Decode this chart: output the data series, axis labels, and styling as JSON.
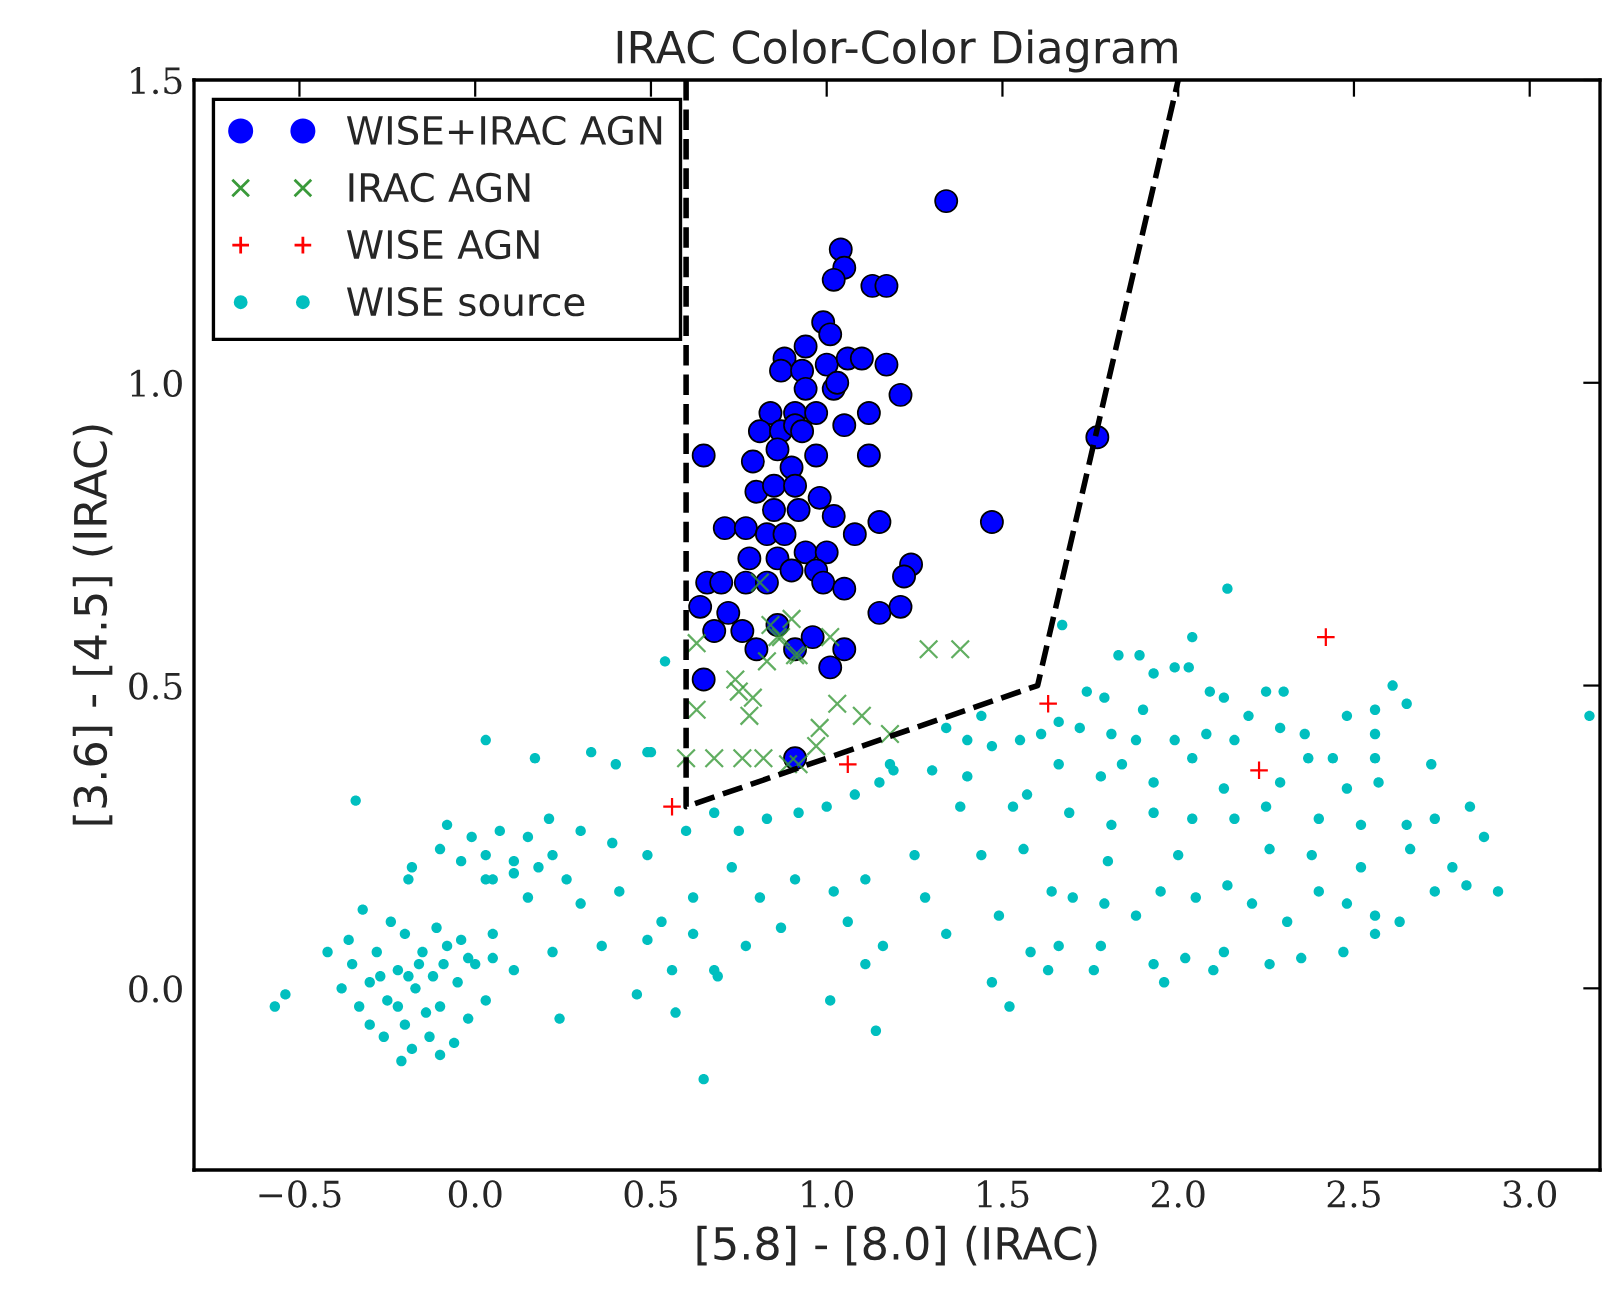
{
  "chart_data": {
    "type": "scatter",
    "title": "IRAC Color-Color Diagram",
    "xlabel": "[5.8] - [8.0] (IRAC)",
    "ylabel": "[3.6] - [4.5] (IRAC)",
    "xlim": [
      -0.8,
      3.2
    ],
    "ylim": [
      -0.3,
      1.5
    ],
    "xticks": [
      {
        "value": -0.5,
        "label": "−0.5"
      },
      {
        "value": 0,
        "label": "0.0"
      },
      0.5,
      {
        "value": 1,
        "label": "1.0"
      },
      1.5,
      {
        "value": 2,
        "label": "2.0"
      },
      2.5,
      {
        "value": 3,
        "label": "3.0"
      }
    ],
    "yticks": [
      {
        "value": 0,
        "label": "0.0"
      },
      0.5,
      {
        "value": 1,
        "label": "1.0"
      },
      1.5
    ],
    "grid": false,
    "legend": "top left",
    "series": [
      {
        "name": "WISE+IRAC AGN",
        "color": "#0000ff",
        "marker": "circle",
        "x": [
          1.34,
          1.04,
          1.05,
          1.02,
          1.13,
          1.17,
          0.99,
          1.01,
          0.94,
          0.88,
          0.87,
          0.93,
          1.0,
          1.06,
          1.1,
          1.17,
          0.94,
          1.02,
          1.03,
          1.21,
          0.84,
          0.91,
          0.97,
          1.05,
          1.12,
          0.81,
          0.87,
          0.91,
          0.93,
          0.65,
          0.79,
          0.86,
          0.97,
          1.12,
          0.9,
          0.8,
          0.85,
          0.91,
          0.85,
          0.92,
          0.98,
          1.02,
          1.08,
          1.15,
          0.71,
          0.77,
          0.83,
          0.88,
          0.94,
          1.0,
          0.78,
          0.86,
          0.9,
          0.97,
          0.66,
          0.7,
          0.77,
          0.83,
          0.99,
          1.05,
          1.24,
          1.22,
          1.47,
          1.77,
          0.64,
          0.72,
          0.86,
          0.76,
          0.68,
          0.8,
          0.91,
          0.96,
          1.01,
          1.05,
          1.15,
          1.21,
          0.65,
          0.91
        ],
        "values": [
          1.3,
          1.22,
          1.19,
          1.17,
          1.16,
          1.16,
          1.1,
          1.08,
          1.06,
          1.04,
          1.02,
          1.02,
          1.03,
          1.04,
          1.04,
          1.03,
          0.99,
          0.99,
          1.0,
          0.98,
          0.95,
          0.95,
          0.95,
          0.93,
          0.95,
          0.92,
          0.92,
          0.93,
          0.92,
          0.88,
          0.87,
          0.89,
          0.88,
          0.88,
          0.86,
          0.82,
          0.83,
          0.83,
          0.79,
          0.79,
          0.81,
          0.78,
          0.75,
          0.77,
          0.76,
          0.76,
          0.75,
          0.75,
          0.72,
          0.72,
          0.71,
          0.71,
          0.69,
          0.69,
          0.67,
          0.67,
          0.67,
          0.67,
          0.67,
          0.66,
          0.7,
          0.68,
          0.77,
          0.91,
          0.63,
          0.62,
          0.6,
          0.59,
          0.59,
          0.56,
          0.56,
          0.58,
          0.53,
          0.56,
          0.62,
          0.63,
          0.51,
          0.38
        ]
      },
      {
        "name": "IRAC AGN",
        "color": "#3a9a3a",
        "marker": "cross",
        "x": [
          0.81,
          0.84,
          0.9,
          0.86,
          0.92,
          1.01,
          0.83,
          0.63,
          1.29,
          1.38,
          0.74,
          0.75,
          0.79,
          0.78,
          0.63,
          1.03,
          1.1,
          0.98,
          1.18,
          0.97,
          0.6,
          0.68,
          0.76,
          0.82,
          0.89,
          0.92,
          0.91,
          0.87
        ],
        "values": [
          0.67,
          0.6,
          0.61,
          0.58,
          0.55,
          0.58,
          0.54,
          0.57,
          0.56,
          0.56,
          0.51,
          0.49,
          0.48,
          0.45,
          0.46,
          0.47,
          0.45,
          0.43,
          0.42,
          0.4,
          0.38,
          0.38,
          0.38,
          0.38,
          0.37,
          0.37,
          0.55,
          0.58
        ]
      },
      {
        "name": "WISE AGN",
        "color": "#ff0000",
        "marker": "plus",
        "x": [
          0.56,
          1.06,
          1.63,
          2.23,
          2.42
        ],
        "values": [
          0.3,
          0.37,
          0.47,
          0.36,
          0.58
        ]
      },
      {
        "name": "WISE source",
        "color": "#00bfbf",
        "marker": "dot",
        "x": [
          -0.17,
          -0.12,
          -0.22,
          -0.25,
          -0.1,
          -0.15,
          -0.2,
          -0.3,
          -0.05,
          -0.08,
          -0.28,
          -0.33,
          -0.13,
          -0.2,
          -0.02,
          -0.35,
          -0.26,
          -0.06,
          0.0,
          -0.11,
          -0.3,
          -0.18,
          0.03,
          -0.24,
          -0.38,
          -0.16,
          -0.14,
          -0.22,
          -0.09,
          -0.19,
          -0.04,
          0.05,
          -0.36,
          -0.1,
          -0.27,
          -0.57,
          -0.54,
          -0.34,
          0.03,
          0.17,
          0.33,
          0.4,
          0.5,
          0.65,
          0.57,
          0.24,
          0.46,
          0.69,
          1.01,
          1.14,
          -0.42,
          -0.21,
          -0.32,
          -0.18,
          -0.19,
          0.21,
          0.3,
          0.39,
          0.49,
          0.6,
          0.68,
          0.75,
          0.83,
          0.92,
          1.0,
          1.08,
          1.15,
          1.18,
          0.15,
          0.3,
          0.41,
          0.53,
          0.62,
          0.73,
          0.81,
          0.91,
          1.02,
          1.11,
          0.22,
          0.36,
          0.49,
          0.62,
          0.77,
          0.87,
          1.06,
          1.16,
          1.11,
          0.68,
          0.56,
          0.05,
          0.11,
          -0.02,
          0.03,
          0.11,
          -0.08,
          -0.01,
          0.07,
          0.15,
          0.22,
          -0.04,
          0.03,
          0.11,
          0.18,
          0.26,
          -0.1,
          0.05,
          0.54,
          0.49,
          2.14,
          1.67,
          2.04,
          1.83,
          1.89,
          1.93,
          1.99,
          2.03,
          2.09,
          2.13,
          1.74,
          1.79,
          1.9,
          2.2,
          2.25,
          2.3,
          2.61,
          2.65,
          2.56,
          2.48,
          3.17,
          1.44,
          1.34,
          1.4,
          1.47,
          1.55,
          1.61,
          1.66,
          1.72,
          1.81,
          1.88,
          1.99,
          2.08,
          2.16,
          2.29,
          2.36,
          2.44,
          2.56,
          2.56,
          2.72,
          2.37,
          1.19,
          1.3,
          1.4,
          1.57,
          1.66,
          1.78,
          1.84,
          1.93,
          2.04,
          2.13,
          2.29,
          2.48,
          2.57,
          1.38,
          1.53,
          1.69,
          1.81,
          1.93,
          2.04,
          2.16,
          2.25,
          2.4,
          2.52,
          2.65,
          2.73,
          2.83,
          2.87,
          1.25,
          1.44,
          1.56,
          1.8,
          2.0,
          2.26,
          2.38,
          2.52,
          2.66,
          2.78,
          1.28,
          1.49,
          1.64,
          1.7,
          1.79,
          1.88,
          1.95,
          2.05,
          2.14,
          2.21,
          2.31,
          2.4,
          2.48,
          2.56,
          2.63,
          2.73,
          2.82,
          2.91,
          1.34,
          1.58,
          1.66,
          1.78,
          1.93,
          2.02,
          2.13,
          2.26,
          2.35,
          2.47,
          2.56,
          1.47,
          1.52,
          1.63,
          1.76,
          1.96,
          2.1
        ],
        "values": [
          0.0,
          0.02,
          0.03,
          -0.02,
          -0.03,
          0.06,
          -0.06,
          0.01,
          0.01,
          0.07,
          0.06,
          -0.03,
          -0.08,
          0.09,
          -0.05,
          0.04,
          -0.08,
          -0.09,
          0.04,
          0.1,
          -0.06,
          -0.1,
          -0.02,
          0.11,
          0.0,
          0.04,
          -0.04,
          -0.03,
          0.04,
          0.02,
          0.08,
          0.05,
          0.08,
          -0.11,
          0.02,
          -0.03,
          -0.01,
          0.31,
          0.41,
          0.38,
          0.39,
          0.37,
          0.39,
          -0.15,
          -0.04,
          -0.05,
          -0.01,
          0.02,
          -0.02,
          -0.07,
          0.06,
          -0.12,
          0.13,
          0.2,
          0.18,
          0.28,
          0.26,
          0.24,
          0.22,
          0.26,
          0.29,
          0.26,
          0.28,
          0.29,
          0.3,
          0.32,
          0.34,
          0.37,
          0.15,
          0.14,
          0.16,
          0.11,
          0.15,
          0.2,
          0.15,
          0.18,
          0.16,
          0.18,
          0.06,
          0.07,
          0.08,
          0.09,
          0.07,
          0.1,
          0.11,
          0.07,
          0.04,
          0.03,
          0.03,
          0.09,
          0.03,
          0.05,
          0.18,
          0.21,
          0.27,
          0.25,
          0.26,
          0.25,
          0.22,
          0.21,
          0.22,
          0.19,
          0.2,
          0.18,
          0.23,
          0.18,
          0.54,
          0.39,
          0.66,
          0.6,
          0.58,
          0.55,
          0.55,
          0.52,
          0.53,
          0.53,
          0.49,
          0.48,
          0.49,
          0.48,
          0.46,
          0.45,
          0.49,
          0.49,
          0.5,
          0.47,
          0.46,
          0.45,
          0.45,
          0.45,
          0.43,
          0.41,
          0.4,
          0.41,
          0.42,
          0.44,
          0.43,
          0.42,
          0.41,
          0.41,
          0.42,
          0.41,
          0.43,
          0.42,
          0.38,
          0.42,
          0.38,
          0.37,
          0.38,
          0.36,
          0.36,
          0.35,
          0.32,
          0.37,
          0.35,
          0.37,
          0.34,
          0.38,
          0.33,
          0.34,
          0.33,
          0.34,
          0.3,
          0.3,
          0.29,
          0.27,
          0.29,
          0.28,
          0.28,
          0.3,
          0.28,
          0.27,
          0.27,
          0.28,
          0.3,
          0.25,
          0.22,
          0.22,
          0.23,
          0.21,
          0.22,
          0.23,
          0.22,
          0.2,
          0.23,
          0.2,
          0.15,
          0.12,
          0.16,
          0.15,
          0.14,
          0.12,
          0.16,
          0.15,
          0.17,
          0.14,
          0.11,
          0.16,
          0.14,
          0.12,
          0.11,
          0.16,
          0.17,
          0.16,
          0.09,
          0.06,
          0.07,
          0.07,
          0.04,
          0.05,
          0.06,
          0.04,
          0.05,
          0.06,
          0.09,
          0.01,
          -0.03,
          0.03,
          0.03,
          0.01,
          0.03
        ]
      },
      {
        "type": "line",
        "color": "#000000",
        "line_style": "dashed",
        "x": [
          0.6,
          0.6,
          1.6,
          2.0
        ],
        "values": [
          1.5,
          0.3,
          0.5,
          1.5
        ]
      }
    ]
  }
}
